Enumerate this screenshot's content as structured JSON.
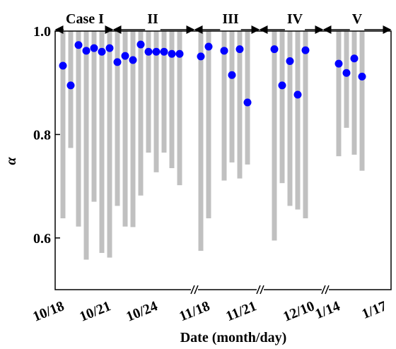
{
  "chart_data": {
    "type": "range-dot",
    "xlabel": "Date (month/day)",
    "ylabel": "α",
    "ylim": [
      0.5,
      1
    ],
    "yticks": [
      0.6,
      0.8,
      {
        "value": 1,
        "label": "1.0"
      }
    ],
    "bar_color": "#c0c0c0",
    "dot_color": "#0000ff",
    "cases": [
      "Case I",
      "II",
      "III",
      "IV",
      "V"
    ],
    "panels": [
      {
        "categories": [
          "10/18",
          null,
          null,
          null,
          null,
          null,
          "10/21",
          null,
          null,
          null,
          null,
          null,
          "10/24",
          null,
          null,
          null
        ],
        "bar_min": [
          0.638,
          0.774,
          0.622,
          0.558,
          0.67,
          0.571,
          0.562,
          0.662,
          0.622,
          0.621,
          0.682,
          0.765,
          0.727,
          0.765,
          0.735,
          0.702
        ],
        "alpha": [
          0.933,
          0.895,
          0.973,
          0.962,
          0.967,
          0.96,
          0.967,
          0.94,
          0.952,
          0.944,
          0.974,
          0.96,
          0.96,
          0.96,
          0.956,
          0.956
        ]
      },
      {
        "categories": [
          null,
          "11/18",
          null,
          null,
          null,
          null,
          null,
          "11/21"
        ],
        "bar_min": [
          0.575,
          0.638,
          null,
          0.711,
          0.746,
          0.715,
          0.742,
          null
        ],
        "alpha": [
          0.951,
          0.97,
          null,
          0.962,
          0.915,
          0.965,
          0.862,
          null
        ]
      },
      {
        "categories": [
          null,
          null,
          null,
          null,
          null,
          null,
          "12/10",
          null
        ],
        "bar_min": [
          null,
          0.595,
          0.706,
          0.662,
          0.655,
          0.638,
          null,
          null
        ],
        "alpha": [
          null,
          0.965,
          0.895,
          0.942,
          0.877,
          0.963,
          null,
          null
        ]
      },
      {
        "categories": [
          null,
          "1/14",
          null,
          null,
          null,
          null,
          null,
          "1/17"
        ],
        "bar_min": [
          null,
          0.758,
          0.813,
          0.761,
          0.73,
          null,
          null,
          null
        ],
        "alpha": [
          null,
          0.937,
          0.919,
          0.947,
          0.912,
          null,
          null,
          null
        ]
      }
    ]
  }
}
